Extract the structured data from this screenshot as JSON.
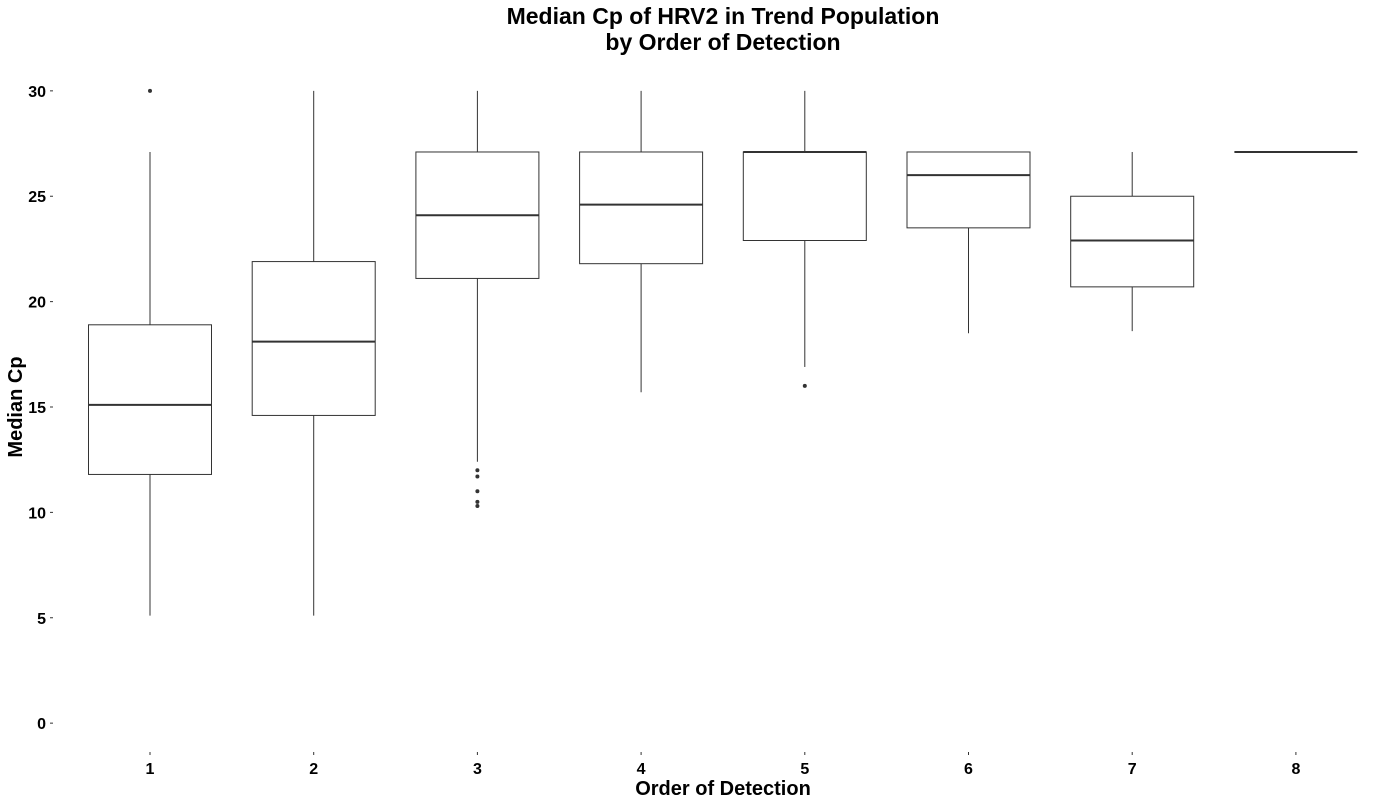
{
  "chart_data": {
    "type": "box",
    "title_line1": "Median Cp of HRV2 in Trend Population",
    "title_line2": "by Order of Detection",
    "xlabel": "Order of Detection",
    "ylabel": "Median Cp",
    "ylim": [
      -0.8,
      30.8
    ],
    "yticks": [
      0,
      5,
      10,
      15,
      20,
      25,
      30
    ],
    "grid": false,
    "legend": "none",
    "categories": [
      "1",
      "2",
      "3",
      "4",
      "5",
      "6",
      "7",
      "8"
    ],
    "boxes": [
      {
        "category": "1",
        "whisker_low": 5.1,
        "q1": 11.8,
        "median": 15.1,
        "q3": 18.9,
        "whisker_high": 27.1,
        "outliers": [
          30.0
        ]
      },
      {
        "category": "2",
        "whisker_low": 5.1,
        "q1": 14.6,
        "median": 18.1,
        "q3": 21.9,
        "whisker_high": 30.0,
        "outliers": []
      },
      {
        "category": "3",
        "whisker_low": 12.4,
        "q1": 21.1,
        "median": 24.1,
        "q3": 27.1,
        "whisker_high": 30.0,
        "outliers": [
          12.0,
          11.7,
          11.0,
          10.5,
          10.3
        ]
      },
      {
        "category": "4",
        "whisker_low": 15.7,
        "q1": 21.8,
        "median": 24.6,
        "q3": 27.1,
        "whisker_high": 30.0,
        "outliers": []
      },
      {
        "category": "5",
        "whisker_low": 16.9,
        "q1": 22.9,
        "median": 27.1,
        "q3": 27.1,
        "whisker_high": 30.0,
        "outliers": [
          16.0
        ]
      },
      {
        "category": "6",
        "whisker_low": 18.5,
        "q1": 23.5,
        "median": 26.0,
        "q3": 27.1,
        "whisker_high": 27.1,
        "outliers": []
      },
      {
        "category": "7",
        "whisker_low": 18.6,
        "q1": 20.7,
        "median": 22.9,
        "q3": 25.0,
        "whisker_high": 27.1,
        "outliers": []
      },
      {
        "category": "8",
        "whisker_low": 27.1,
        "q1": 27.1,
        "median": 27.1,
        "q3": 27.1,
        "whisker_high": 27.1,
        "outliers": []
      }
    ]
  }
}
